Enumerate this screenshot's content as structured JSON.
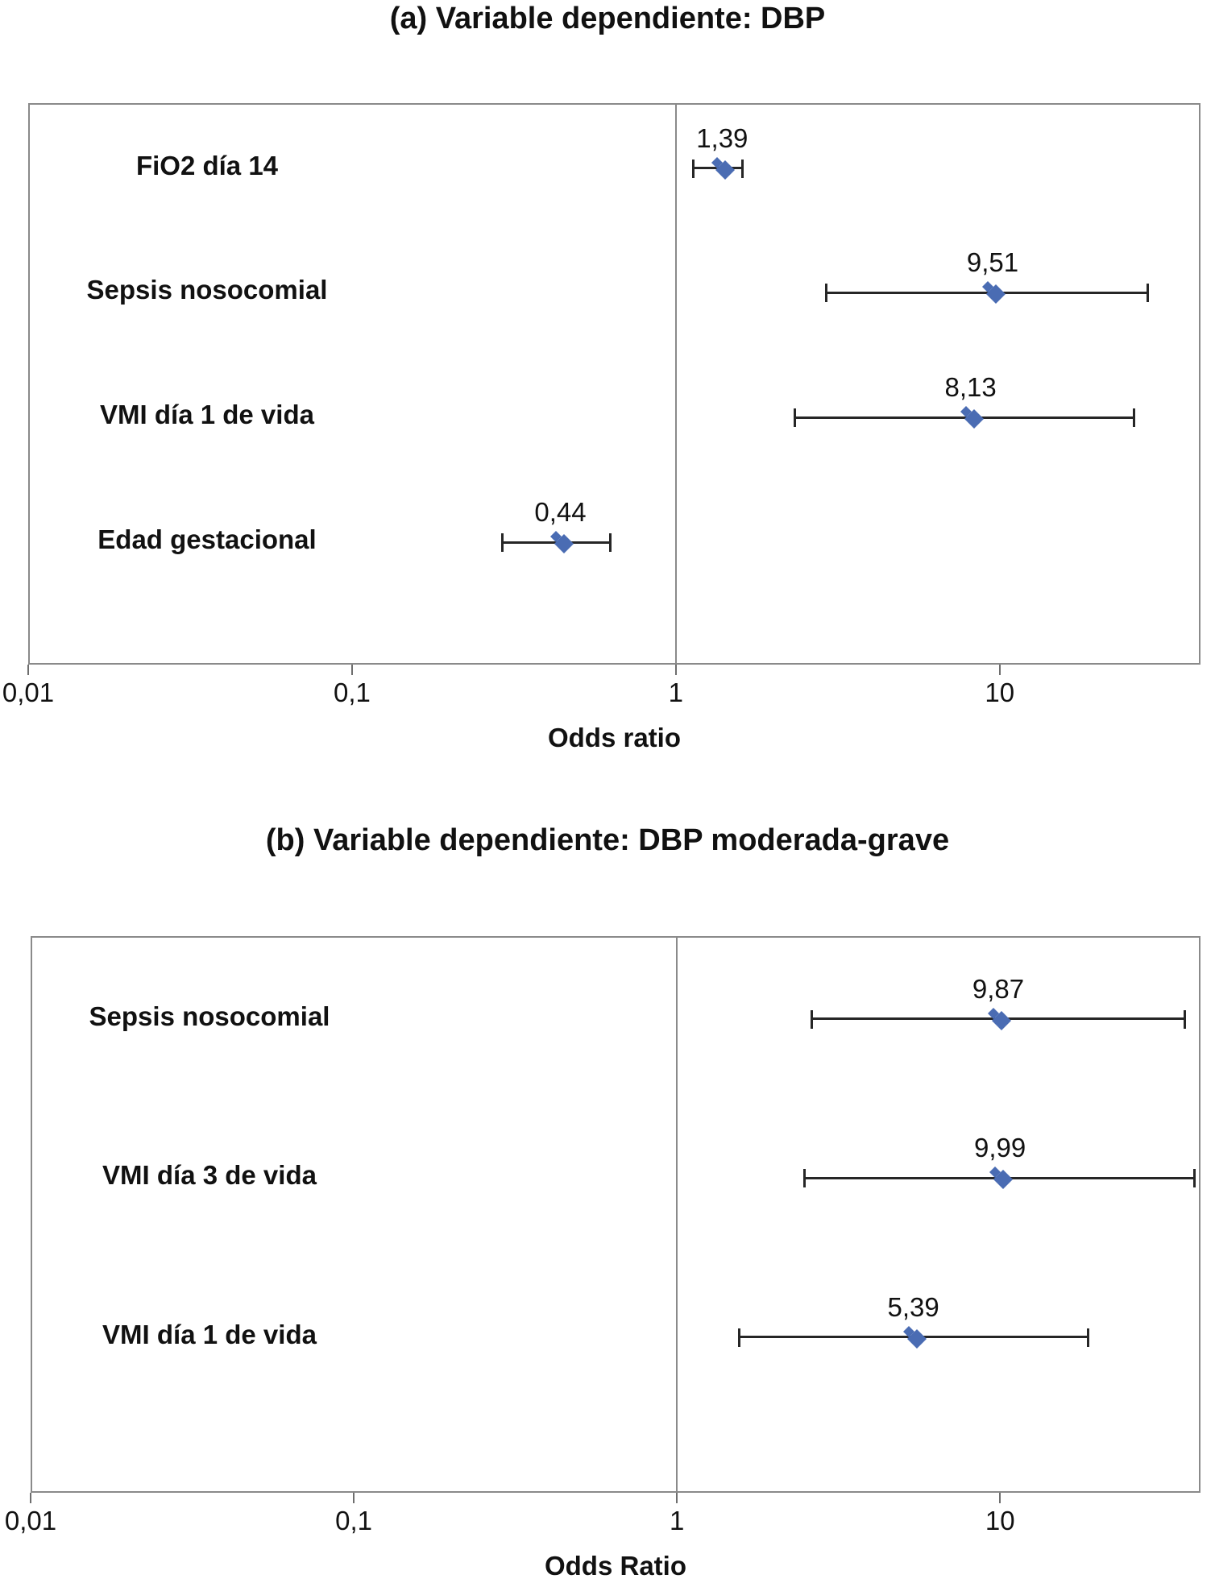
{
  "style": {
    "marker_color": "#4a6cb3",
    "ci_line_color": "#262626",
    "reference_line_color": "#8a8a8a",
    "plot_border_color": "#8a8a8a",
    "text_color": "#111111",
    "background_color": "#ffffff"
  },
  "chart_data": [
    {
      "type": "scatter",
      "subtype": "forest-plot",
      "panel_id": "a",
      "title": "(a) Variable dependiente: DBP",
      "xlabel": "Odds ratio",
      "x_scale": "log",
      "xlim": [
        0.01,
        41.7
      ],
      "reference_line_x": 1,
      "grid": false,
      "legend": false,
      "x_ticks": [
        {
          "v": 0.01,
          "label": "0,01"
        },
        {
          "v": 0.1,
          "label": "0,1"
        },
        {
          "v": 1,
          "label": "1"
        },
        {
          "v": 10,
          "label": "10"
        }
      ],
      "rows": [
        {
          "label": "FiO2 día 14",
          "or": 1.39,
          "or_label": "1,39",
          "ci_low": 1.13,
          "ci_high": 1.61
        },
        {
          "label": "Sepsis nosocomial",
          "or": 9.51,
          "or_label": "9,51",
          "ci_low": 2.9,
          "ci_high": 28.8
        },
        {
          "label": "VMI día 1 de vida",
          "or": 8.13,
          "or_label": "8,13",
          "ci_low": 2.33,
          "ci_high": 26.1
        },
        {
          "label": "Edad gestacional",
          "or": 0.44,
          "or_label": "0,44",
          "ci_low": 0.29,
          "ci_high": 0.63
        }
      ]
    },
    {
      "type": "scatter",
      "subtype": "forest-plot",
      "panel_id": "b",
      "title": "(b) Variable dependiente: DBP moderada-grave",
      "xlabel": "Odds Ratio",
      "x_scale": "log",
      "xlim": [
        0.01,
        41.7
      ],
      "reference_line_x": 1,
      "grid": false,
      "legend": false,
      "x_ticks": [
        {
          "v": 0.01,
          "label": "0,01"
        },
        {
          "v": 0.1,
          "label": "0,1"
        },
        {
          "v": 1,
          "label": "1"
        },
        {
          "v": 10,
          "label": "10"
        }
      ],
      "rows": [
        {
          "label": "Sepsis nosocomial",
          "or": 9.87,
          "or_label": "9,87",
          "ci_low": 2.6,
          "ci_high": 37.4
        },
        {
          "label": "VMI día 3 de vida",
          "or": 9.99,
          "or_label": "9,99",
          "ci_low": 2.47,
          "ci_high": 40.0
        },
        {
          "label": "VMI día 1 de vida",
          "or": 5.39,
          "or_label": "5,39",
          "ci_low": 1.55,
          "ci_high": 18.8
        }
      ]
    }
  ]
}
